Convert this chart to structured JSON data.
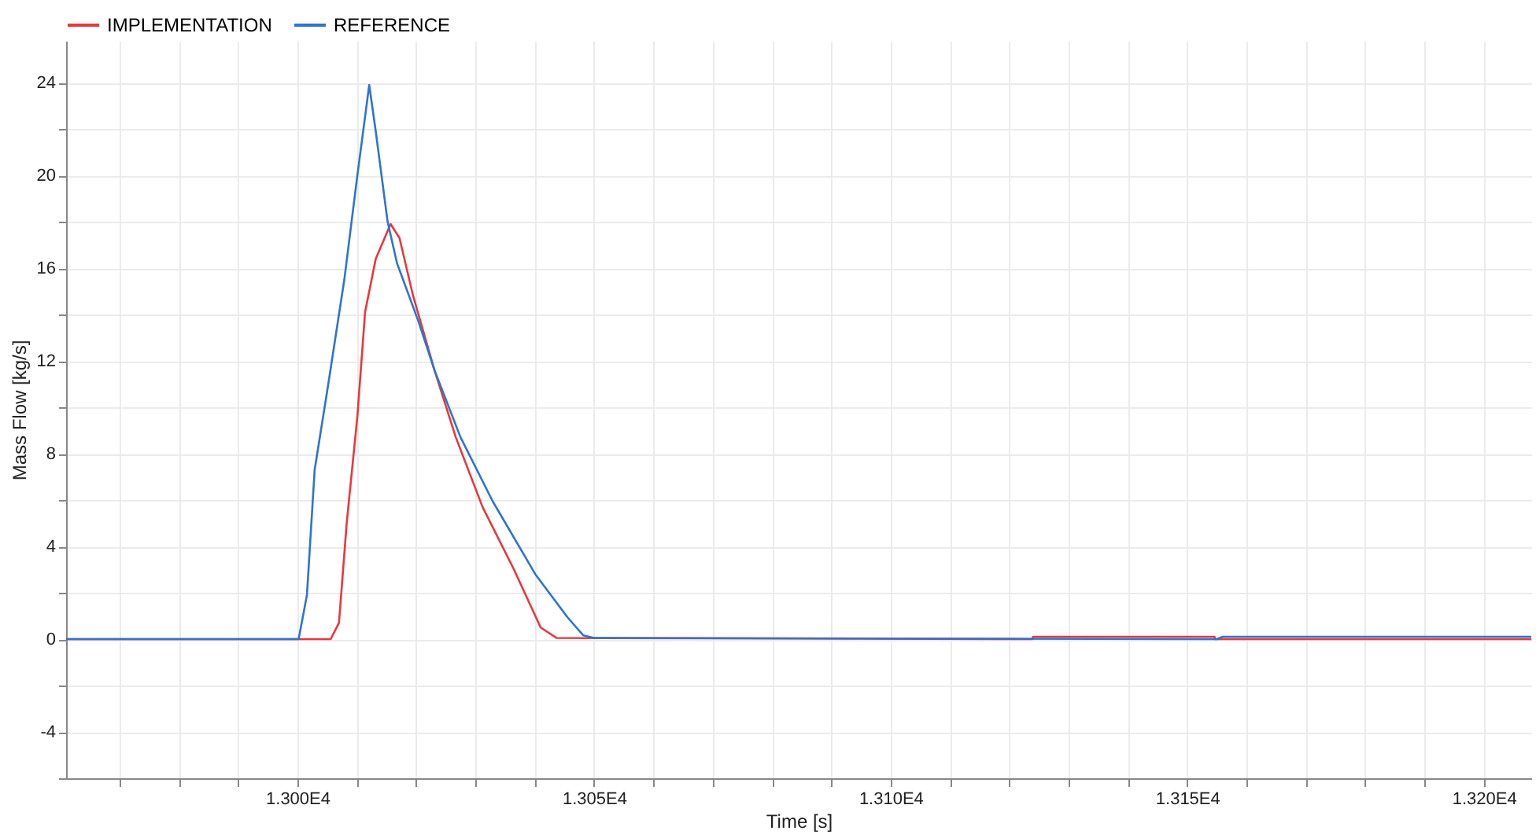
{
  "chart_data": {
    "type": "line",
    "xlabel": "Time [s]",
    "ylabel": "Mass Flow [kg/s]",
    "legend": "top left",
    "grid": true,
    "line_style": "solid",
    "marker": "none",
    "xlim": [
      12961,
      13208
    ],
    "ylim": [
      -6,
      25.8
    ],
    "xticks": [
      {
        "value": 12970,
        "label": null
      },
      {
        "value": 12980,
        "label": null
      },
      {
        "value": 12990,
        "label": null
      },
      {
        "value": 13000,
        "label": "1.300E4"
      },
      {
        "value": 13010,
        "label": null
      },
      {
        "value": 13020,
        "label": null
      },
      {
        "value": 13030,
        "label": null
      },
      {
        "value": 13040,
        "label": null
      },
      {
        "value": 13050,
        "label": "1.305E4"
      },
      {
        "value": 13060,
        "label": null
      },
      {
        "value": 13070,
        "label": null
      },
      {
        "value": 13080,
        "label": null
      },
      {
        "value": 13090,
        "label": null
      },
      {
        "value": 13100,
        "label": "1.310E4"
      },
      {
        "value": 13110,
        "label": null
      },
      {
        "value": 13120,
        "label": null
      },
      {
        "value": 13130,
        "label": null
      },
      {
        "value": 13140,
        "label": null
      },
      {
        "value": 13150,
        "label": "1.315E4"
      },
      {
        "value": 13160,
        "label": null
      },
      {
        "value": 13170,
        "label": null
      },
      {
        "value": 13180,
        "label": null
      },
      {
        "value": 13190,
        "label": null
      },
      {
        "value": 13200,
        "label": "1.320E4"
      }
    ],
    "yticks": [
      {
        "value": -6,
        "label": null
      },
      -4,
      {
        "value": -2,
        "label": null
      },
      0,
      {
        "value": 2,
        "label": null
      },
      4,
      {
        "value": 6,
        "label": null
      },
      8,
      {
        "value": 10,
        "label": null
      },
      12,
      {
        "value": 14,
        "label": null
      },
      16,
      {
        "value": 18,
        "label": null
      },
      20,
      {
        "value": 22,
        "label": null
      },
      24
    ],
    "series": [
      {
        "name": "IMPLEMENTATION",
        "color": "#e8383d",
        "x": [
          12961,
          13005.6,
          13007,
          13008.3,
          13010.1,
          13011.4,
          13013.2,
          13015.7,
          13017.2,
          13019.5,
          13023.1,
          13026.7,
          13031.2,
          13036.5,
          13041,
          13043.7,
          13123.9,
          13124,
          13154.6,
          13154.7,
          13208
        ],
        "values": [
          0,
          0,
          0.7,
          5.0,
          9.6,
          14.1,
          16.4,
          17.9,
          17.3,
          14.8,
          11.6,
          8.7,
          5.7,
          3.0,
          0.5,
          0.05,
          0,
          0.1,
          0.1,
          0,
          0
        ]
      },
      {
        "name": "REFERENCE",
        "color": "#2f74d0",
        "x": [
          12961,
          13000.2,
          13001.6,
          13002.9,
          13005.2,
          13007.9,
          13010.1,
          13012.1,
          13013.2,
          13015.2,
          13016.8,
          13020.4,
          13023.1,
          13027.5,
          13032.9,
          13040.1,
          13045.5,
          13048.2,
          13050,
          13155,
          13156,
          13208
        ],
        "values": [
          0,
          0,
          1.9,
          7.3,
          11.0,
          15.5,
          20.0,
          23.9,
          21.9,
          18.0,
          16.2,
          13.7,
          11.6,
          8.7,
          5.95,
          2.8,
          0.95,
          0.16,
          0.05,
          0,
          0.1,
          0.1
        ]
      }
    ]
  }
}
